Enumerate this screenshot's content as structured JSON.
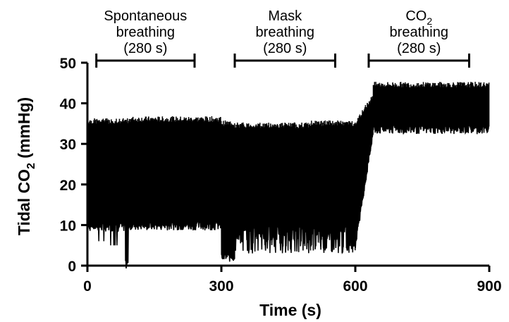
{
  "chart_data": {
    "type": "line",
    "title": "",
    "xlabel": "Time (s)",
    "ylabel": "Tidal CO2 (mmHg)",
    "ylabel_main": "Tidal CO",
    "ylabel_sub": "2",
    "ylabel_unit": " (mmHg)",
    "xlim": [
      0,
      900
    ],
    "ylim": [
      0,
      50
    ],
    "xticks": [
      0,
      300,
      600,
      900
    ],
    "yticks": [
      0,
      10,
      20,
      30,
      40,
      50
    ],
    "grid": false,
    "legend": "none",
    "line_color": "#000000",
    "phases": [
      {
        "line1": "Spontaneous",
        "line2": "breathing",
        "duration": "(280 s)",
        "start": 20,
        "end": 240
      },
      {
        "line1": "Mask",
        "line2": "breathing",
        "duration": "(280 s)",
        "start": 330,
        "end": 555
      },
      {
        "line1": "CO",
        "line1_sub": "2",
        "line2": "breathing",
        "duration": "(280 s)",
        "start": 630,
        "end": 855
      }
    ],
    "series": [
      {
        "segments": [
          {
            "x_start": 0,
            "x_end": 85,
            "peak": 35.5,
            "trough": 9.5,
            "trough_dips": [
              6,
              5
            ]
          },
          {
            "x_start": 85,
            "x_end": 92,
            "peak": 35.5,
            "trough": 0.3
          },
          {
            "x_start": 92,
            "x_end": 300,
            "peak": 36.0,
            "trough": 9.8
          },
          {
            "x_start": 300,
            "x_end": 330,
            "peak": 35.0,
            "trough": 2.0
          },
          {
            "x_start": 330,
            "x_end": 500,
            "peak": 34.5,
            "trough": 3.0
          },
          {
            "x_start": 500,
            "x_end": 600,
            "peak": 35.0,
            "trough": 3.0
          },
          {
            "x_start": 600,
            "x_end": 640,
            "peak": 40.0,
            "trough": 32.0
          },
          {
            "x_start": 640,
            "x_end": 900,
            "peak": 44.5,
            "trough": 33.5
          }
        ]
      }
    ]
  }
}
